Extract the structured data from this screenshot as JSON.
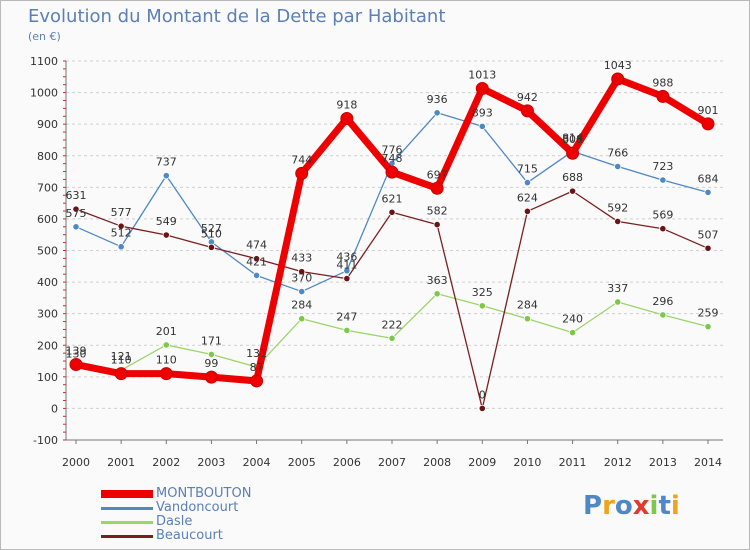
{
  "header": {
    "title": "Evolution du Montant de la Dette par Habitant",
    "unit": "(en €)"
  },
  "logo": {
    "text": "Proxiti"
  },
  "chart_data": {
    "type": "line",
    "title": "Evolution du Montant de la Dette par Habitant",
    "subtitle": "(en €)",
    "xlabel": "",
    "ylabel": "",
    "x": [
      2000,
      2001,
      2002,
      2003,
      2004,
      2005,
      2006,
      2007,
      2008,
      2009,
      2010,
      2011,
      2012,
      2013,
      2014
    ],
    "x_tick_labels": [
      "2000",
      "2001",
      "2002",
      "2003",
      "2004",
      "2005",
      "2006",
      "2007",
      "2008",
      "2009",
      "2010",
      "2011",
      "2012",
      "2013",
      "2014"
    ],
    "ylim": [
      -100,
      1100
    ],
    "y_ticks": [
      -100,
      0,
      100,
      200,
      300,
      400,
      500,
      600,
      700,
      800,
      900,
      1000,
      1100
    ],
    "grid": "horizontal dashed",
    "legend_position": "bottom-left",
    "series": [
      {
        "name": "Vandoncourt",
        "color": "#4f88c6",
        "point_color": "#4f88c6",
        "values": [
          575,
          512,
          737,
          527,
          421,
          370,
          436,
          776,
          936,
          893,
          715,
          814,
          766,
          723,
          684
        ]
      },
      {
        "name": "Dasle",
        "color": "#9dd56b",
        "point_color": "#7cc94a",
        "values": [
          130,
          121,
          201,
          171,
          131,
          284,
          247,
          222,
          363,
          325,
          284,
          240,
          337,
          296,
          259
        ]
      },
      {
        "name": "Beaucourt",
        "color": "#7a1f1f",
        "point_color": "#6a1515",
        "values": [
          631,
          577,
          549,
          510,
          474,
          433,
          411,
          621,
          582,
          0,
          624,
          688,
          592,
          569,
          507
        ]
      },
      {
        "name": "MONTBOUTON",
        "color": "#ee0000",
        "point_color": "#ee0000",
        "values": [
          139,
          110,
          110,
          99,
          87,
          744,
          918,
          748,
          697,
          1013,
          942,
          808,
          1043,
          988,
          901
        ]
      }
    ],
    "data_labels": {
      "Vandoncourt": [
        "575",
        "512",
        "737",
        "527",
        "421",
        "370",
        "436",
        "776",
        "936",
        "893",
        "715",
        "814",
        "766",
        "723",
        "684"
      ],
      "Dasle": [
        "130",
        "121",
        "201",
        "171",
        "131",
        "284",
        "247",
        "222",
        "363",
        "325",
        "284",
        "240",
        "337",
        "296",
        "259"
      ],
      "Beaucourt": [
        "631",
        "577",
        "549",
        "510",
        "474",
        "433",
        "411",
        "621",
        "582",
        "0",
        "624",
        "688",
        "592",
        "569",
        "507"
      ],
      "MONTBOUTON": [
        "139",
        "110",
        "110",
        "99",
        "87",
        "744",
        "918",
        "748",
        "697",
        "1013",
        "942",
        "808",
        "1043",
        "988",
        "901"
      ]
    },
    "legend_order": [
      "MONTBOUTON",
      "Vandoncourt",
      "Dasle",
      "Beaucourt"
    ]
  }
}
